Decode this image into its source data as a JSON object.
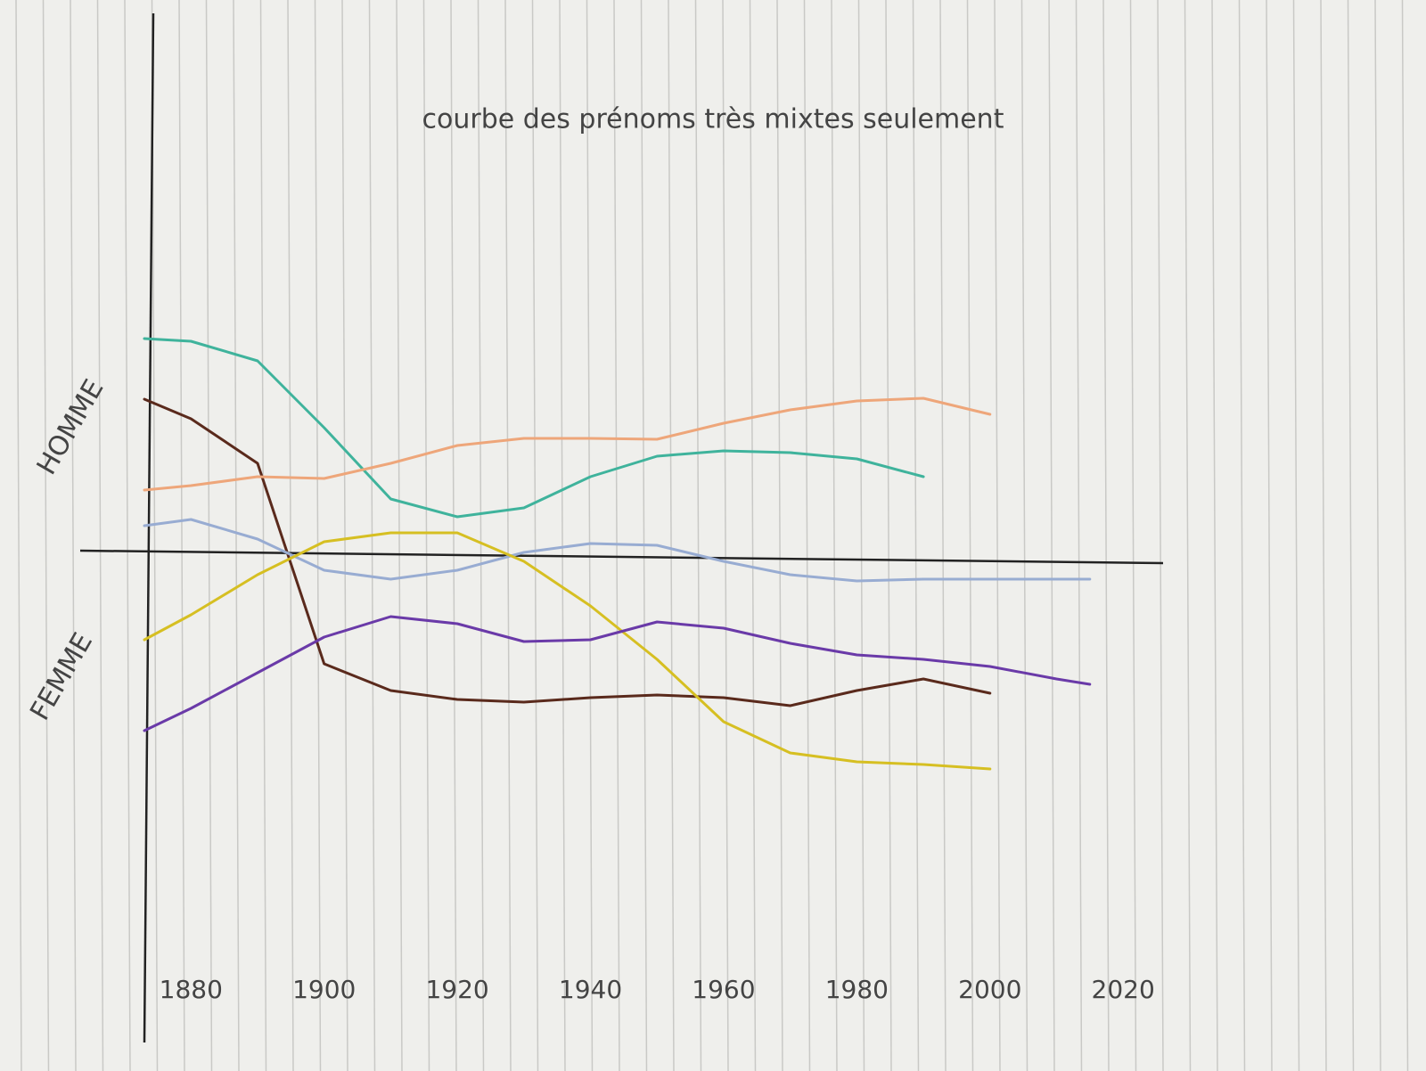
{
  "chart_data": {
    "type": "line",
    "title": "courbe des prénoms très mixtes seulement",
    "y_label_top": "HOMME",
    "y_label_bottom": "FEMME",
    "x": [
      1873,
      1880,
      1890,
      1900,
      1910,
      1920,
      1930,
      1940,
      1950,
      1960,
      1970,
      1980,
      1990,
      2000,
      2010,
      2015
    ],
    "xlim": [
      1873,
      2026
    ],
    "xticks": [
      1880,
      1900,
      1920,
      1940,
      1960,
      1980,
      2000,
      2020
    ],
    "ylim": [
      -5.45,
      6.1
    ],
    "series": [
      {
        "color": "#3fb39c",
        "values": [
          2.45,
          2.42,
          2.2,
          1.45,
          0.65,
          0.45,
          0.55,
          0.9,
          1.13,
          1.19,
          1.17,
          1.1,
          0.9,
          null,
          null,
          null
        ]
      },
      {
        "color": "#5a2a1c",
        "values": [
          1.77,
          1.55,
          1.05,
          -1.2,
          -1.5,
          -1.6,
          -1.63,
          -1.58,
          -1.55,
          -1.58,
          -1.67,
          -1.5,
          -1.37,
          -1.53,
          null,
          null
        ]
      },
      {
        "color": "#eea67a",
        "values": [
          0.75,
          0.8,
          0.9,
          0.88,
          1.05,
          1.25,
          1.33,
          1.33,
          1.32,
          1.5,
          1.65,
          1.75,
          1.78,
          1.6,
          null,
          null
        ]
      },
      {
        "color": "#98acd2",
        "values": [
          0.35,
          0.42,
          0.2,
          -0.15,
          -0.25,
          -0.15,
          0.05,
          0.15,
          0.13,
          -0.05,
          -0.2,
          -0.27,
          -0.25,
          -0.25,
          -0.25,
          -0.25
        ]
      },
      {
        "color": "#d6bf22",
        "values": [
          -0.93,
          -0.65,
          -0.2,
          0.17,
          0.27,
          0.27,
          -0.05,
          -0.55,
          -1.15,
          -1.85,
          -2.2,
          -2.3,
          -2.33,
          -2.38,
          null,
          null
        ]
      },
      {
        "color": "#6a3aa8",
        "values": [
          -1.95,
          -1.7,
          -1.3,
          -0.9,
          -0.67,
          -0.75,
          -0.95,
          -0.93,
          -0.73,
          -0.8,
          -0.97,
          -1.1,
          -1.15,
          -1.23,
          -1.37,
          -1.43
        ]
      }
    ]
  }
}
